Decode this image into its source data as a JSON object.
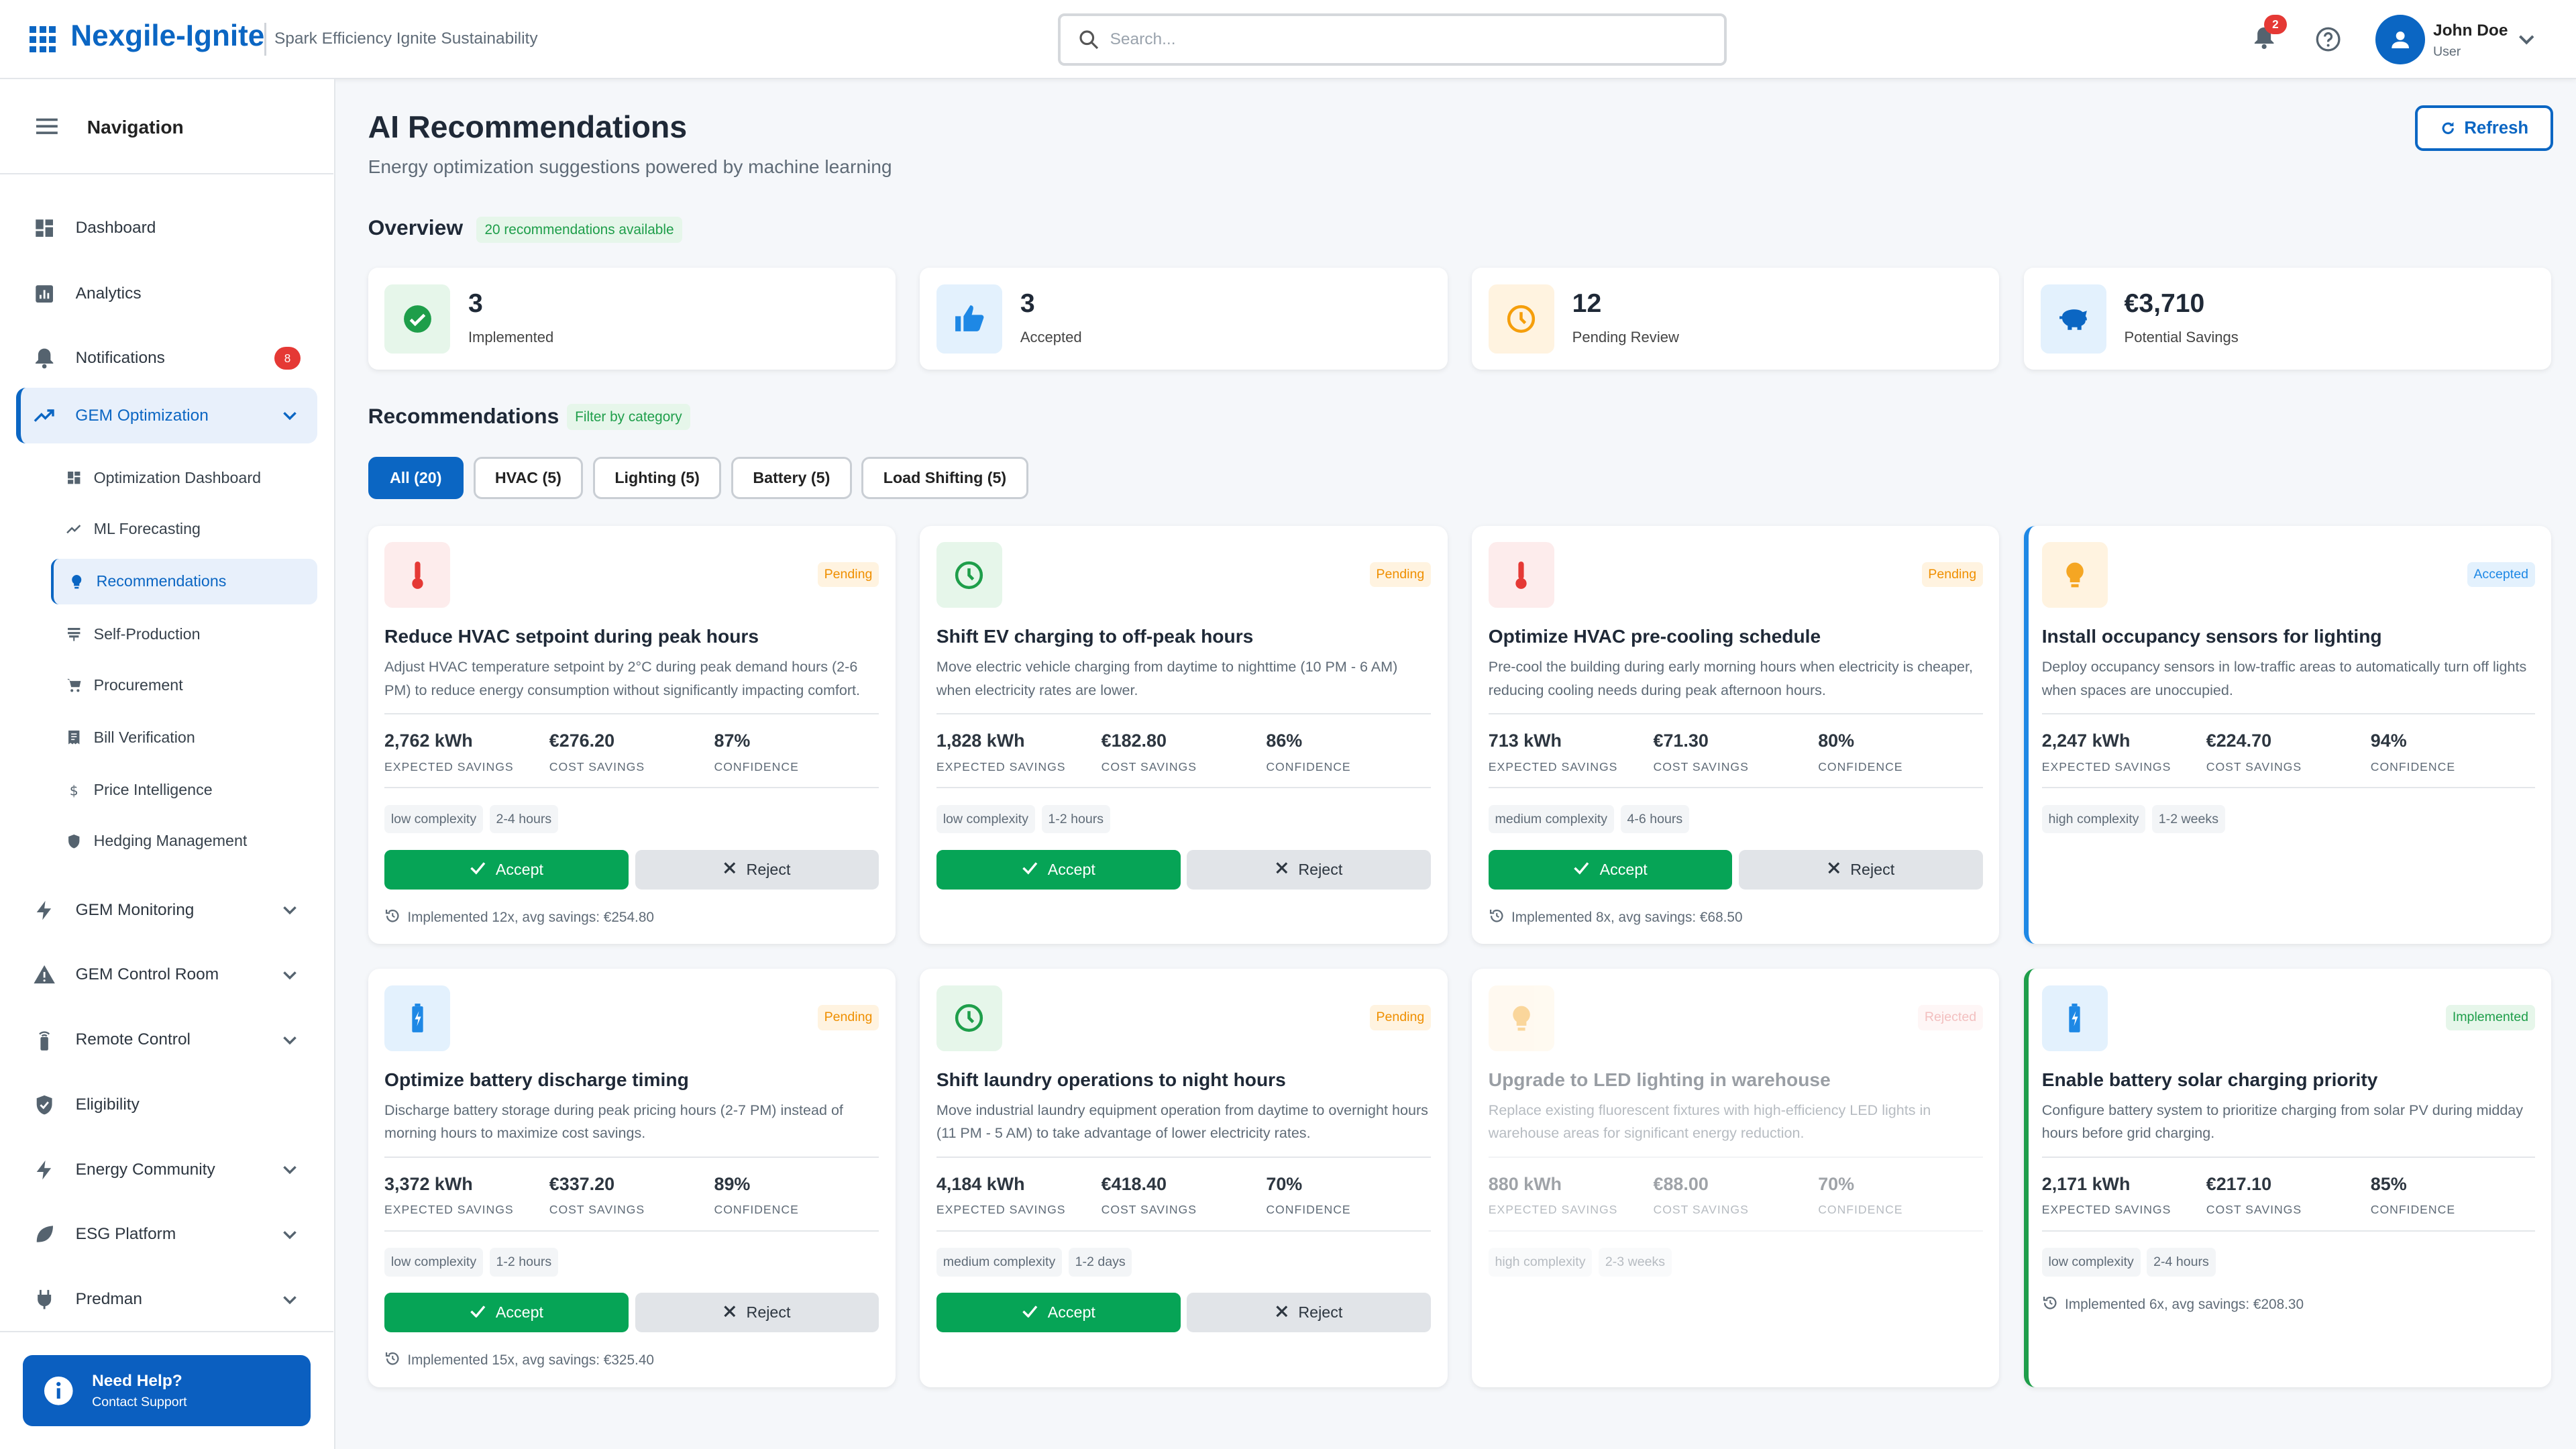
{
  "header": {
    "brand": "Nexgile-Ignite",
    "tagline": "Spark Efficiency Ignite Sustainability",
    "search_placeholder": "Search...",
    "notification_count": "2",
    "user_name": "John Doe",
    "user_role": "User"
  },
  "sidebar": {
    "title": "Navigation",
    "items": [
      {
        "label": "Dashboard",
        "icon": "dashboard-icon"
      },
      {
        "label": "Analytics",
        "icon": "analytics-icon"
      },
      {
        "label": "Notifications",
        "icon": "bell-icon",
        "badge": "8"
      },
      {
        "label": "GEM Optimization",
        "icon": "trending-up-icon",
        "active": true,
        "expanded": true
      }
    ],
    "sub_items": [
      {
        "label": "Optimization Dashboard",
        "icon": "dashboard-icon"
      },
      {
        "label": "ML Forecasting",
        "icon": "trend-icon"
      },
      {
        "label": "Recommendations",
        "icon": "lightbulb-icon",
        "active": true
      },
      {
        "label": "Self-Production",
        "icon": "solar-icon"
      },
      {
        "label": "Procurement",
        "icon": "cart-icon"
      },
      {
        "label": "Bill Verification",
        "icon": "receipt-icon"
      },
      {
        "label": "Price Intelligence",
        "icon": "dollar-icon"
      },
      {
        "label": "Hedging Management",
        "icon": "shield-icon"
      }
    ],
    "more_items": [
      {
        "label": "GEM Monitoring",
        "icon": "bolt-icon",
        "chevron": true
      },
      {
        "label": "GEM Control Room",
        "icon": "warning-icon",
        "chevron": true
      },
      {
        "label": "Remote Control",
        "icon": "remote-icon",
        "chevron": true
      },
      {
        "label": "Eligibility",
        "icon": "verified-icon",
        "chevron": false
      },
      {
        "label": "Energy Community",
        "icon": "bolt-icon",
        "chevron": true
      },
      {
        "label": "ESG Platform",
        "icon": "leaf-icon",
        "chevron": true
      },
      {
        "label": "Predman",
        "icon": "plug-icon",
        "chevron": true
      }
    ],
    "help_title": "Need Help?",
    "help_sub": "Contact Support"
  },
  "page": {
    "title": "AI Recommendations",
    "subtitle": "Energy optimization suggestions powered by machine learning",
    "refresh_label": "Refresh",
    "overview_title": "Overview",
    "overview_badge": "20 recommendations available",
    "recommendations_title": "Recommendations",
    "filter_badge": "Filter by category"
  },
  "stats": [
    {
      "value": "3",
      "label": "Implemented",
      "icon": "check-circle-icon",
      "color": "#1e9e4a",
      "bg": "#e6f6ea"
    },
    {
      "value": "3",
      "label": "Accepted",
      "icon": "thumbs-up-icon",
      "color": "#1e88e5",
      "bg": "#e3f1fd"
    },
    {
      "value": "12",
      "label": "Pending Review",
      "icon": "clock-icon",
      "color": "#f59e0b",
      "bg": "#fff3e0"
    },
    {
      "value": "€3,710",
      "label": "Potential Savings",
      "icon": "piggy-bank-icon",
      "color": "#0b66c3",
      "bg": "#e3f1fd"
    }
  ],
  "filters": [
    {
      "label": "All (20)",
      "active": true
    },
    {
      "label": "HVAC (5)"
    },
    {
      "label": "Lighting (5)"
    },
    {
      "label": "Battery (5)"
    },
    {
      "label": "Load Shifting (5)"
    }
  ],
  "labels": {
    "expected": "EXPECTED SAVINGS",
    "cost": "COST SAVINGS",
    "confidence": "CONFIDENCE",
    "accept": "Accept",
    "reject": "Reject"
  },
  "cards": [
    {
      "icon": "thermometer-icon",
      "status": "Pending",
      "state": "pending",
      "title": "Reduce HVAC setpoint during peak hours",
      "desc": "Adjust HVAC temperature setpoint by 2°C during peak demand hours (2-6 PM) to reduce energy consumption without significantly impacting comfort.",
      "kwh": "2,762 kWh",
      "cost": "€276.20",
      "confidence": "87%",
      "complexity": "low complexity",
      "duration": "2-4 hours",
      "actions": true,
      "footer": "Implemented 12x, avg savings: €254.80"
    },
    {
      "icon": "clock-icon",
      "status": "Pending",
      "state": "pending",
      "title": "Shift EV charging to off-peak hours",
      "desc": "Move electric vehicle charging from daytime to nighttime (10 PM - 6 AM) when electricity rates are lower.",
      "kwh": "1,828 kWh",
      "cost": "€182.80",
      "confidence": "86%",
      "complexity": "low complexity",
      "duration": "1-2 hours",
      "actions": true,
      "footer": ""
    },
    {
      "icon": "thermometer-icon",
      "status": "Pending",
      "state": "pending",
      "title": "Optimize HVAC pre-cooling schedule",
      "desc": "Pre-cool the building during early morning hours when electricity is cheaper, reducing cooling needs during peak afternoon hours.",
      "kwh": "713 kWh",
      "cost": "€71.30",
      "confidence": "80%",
      "complexity": "medium complexity",
      "duration": "4-6 hours",
      "actions": true,
      "footer": "Implemented 8x, avg savings: €68.50"
    },
    {
      "icon": "lightbulb-icon",
      "status": "Accepted",
      "state": "accepted",
      "title": "Install occupancy sensors for lighting",
      "desc": "Deploy occupancy sensors in low-traffic areas to automatically turn off lights when spaces are unoccupied.",
      "kwh": "2,247 kWh",
      "cost": "€224.70",
      "confidence": "94%",
      "complexity": "high complexity",
      "duration": "1-2 weeks",
      "actions": false,
      "footer": ""
    },
    {
      "icon": "battery-icon",
      "status": "Pending",
      "state": "pending",
      "title": "Optimize battery discharge timing",
      "desc": "Discharge battery storage during peak pricing hours (2-7 PM) instead of morning hours to maximize cost savings.",
      "kwh": "3,372 kWh",
      "cost": "€337.20",
      "confidence": "89%",
      "complexity": "low complexity",
      "duration": "1-2 hours",
      "actions": true,
      "footer": "Implemented 15x, avg savings: €325.40"
    },
    {
      "icon": "clock-icon",
      "status": "Pending",
      "state": "pending",
      "title": "Shift laundry operations to night hours",
      "desc": "Move industrial laundry equipment operation from daytime to overnight hours (11 PM - 5 AM) to take advantage of lower electricity rates.",
      "kwh": "4,184 kWh",
      "cost": "€418.40",
      "confidence": "70%",
      "complexity": "medium complexity",
      "duration": "1-2 days",
      "actions": true,
      "footer": ""
    },
    {
      "icon": "lightbulb-icon",
      "status": "Rejected",
      "state": "rejected",
      "title": "Upgrade to LED lighting in warehouse",
      "desc": "Replace existing fluorescent fixtures with high-efficiency LED lights in warehouse areas for significant energy reduction.",
      "kwh": "880 kWh",
      "cost": "€88.00",
      "confidence": "70%",
      "complexity": "high complexity",
      "duration": "2-3 weeks",
      "actions": false,
      "footer": ""
    },
    {
      "icon": "battery-icon",
      "status": "Implemented",
      "state": "implemented",
      "title": "Enable battery solar charging priority",
      "desc": "Configure battery system to prioritize charging from solar PV during midday hours before grid charging.",
      "kwh": "2,171 kWh",
      "cost": "€217.10",
      "confidence": "85%",
      "complexity": "low complexity",
      "duration": "2-4 hours",
      "actions": false,
      "footer": "Implemented 6x, avg savings: €208.30"
    }
  ],
  "colors": {
    "primary": "#0b66c3",
    "success": "#06a456",
    "pending": "#ef8f00",
    "danger": "#e53935"
  }
}
